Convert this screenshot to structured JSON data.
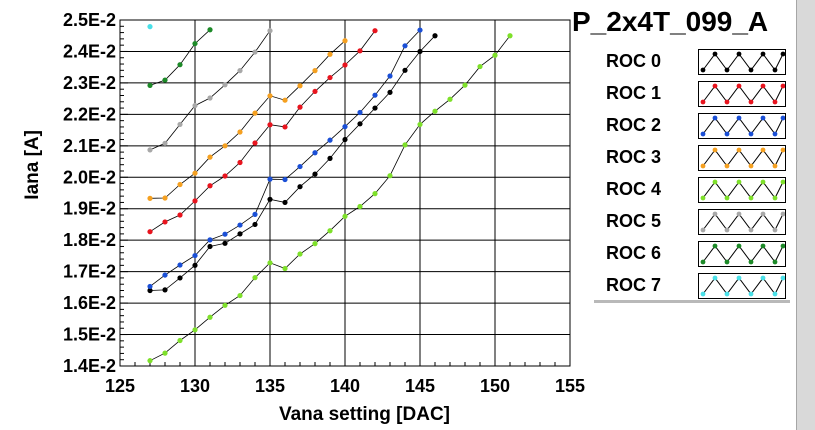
{
  "chart_data": {
    "type": "line",
    "title": "P_2x4T_099_A",
    "xlabel": "Vana setting [DAC]",
    "ylabel": "Iana [A]",
    "xlim": [
      125,
      155
    ],
    "ylim": [
      0.014,
      0.025
    ],
    "x_ticks": [
      "125",
      "130",
      "135",
      "140",
      "145",
      "150",
      "155"
    ],
    "y_ticks": [
      "1.4E-2",
      "1.5E-2",
      "1.6E-2",
      "1.7E-2",
      "1.8E-2",
      "1.9E-2",
      "2.0E-2",
      "2.1E-2",
      "2.2E-2",
      "2.3E-2",
      "2.4E-2",
      "2.5E-2"
    ],
    "grid": true,
    "legend_position": "right",
    "series": [
      {
        "name": "ROC 0",
        "color": "#000000",
        "x": [
          127,
          128,
          129,
          130,
          131,
          132,
          133,
          134,
          135,
          136,
          137,
          138,
          139,
          140,
          141,
          142,
          143,
          144,
          145,
          146
        ],
        "y": [
          0.0164,
          0.01642,
          0.0168,
          0.0172,
          0.0178,
          0.0179,
          0.0182,
          0.0185,
          0.0193,
          0.0192,
          0.0197,
          0.0201,
          0.0206,
          0.0212,
          0.0217,
          0.0222,
          0.0227,
          0.0234,
          0.024,
          0.0245
        ]
      },
      {
        "name": "ROC 1",
        "color": "#e8141e",
        "x": [
          127,
          128,
          129,
          130,
          131,
          132,
          133,
          134,
          135,
          136,
          137,
          138,
          139,
          140,
          141,
          142
        ],
        "y": [
          0.01827,
          0.01858,
          0.0188,
          0.01925,
          0.01973,
          0.02004,
          0.02047,
          0.02109,
          0.02167,
          0.0216,
          0.02223,
          0.02273,
          0.02317,
          0.02357,
          0.02402,
          0.02466
        ]
      },
      {
        "name": "ROC 2",
        "color": "#1a4fd6",
        "x": [
          127,
          128,
          129,
          130,
          131,
          132,
          133,
          134,
          135,
          136,
          137,
          138,
          139,
          140,
          141,
          142,
          143,
          144,
          145
        ],
        "y": [
          0.01653,
          0.01689,
          0.01721,
          0.01751,
          0.01801,
          0.01819,
          0.01848,
          0.01882,
          0.01994,
          0.01993,
          0.02034,
          0.02078,
          0.02118,
          0.02161,
          0.02206,
          0.02261,
          0.02322,
          0.02418,
          0.02468
        ]
      },
      {
        "name": "ROC 3",
        "color": "#f5a020",
        "x": [
          127,
          128,
          129,
          130,
          131,
          132,
          133,
          134,
          135,
          136,
          137,
          138,
          139,
          140
        ],
        "y": [
          0.01933,
          0.01934,
          0.01977,
          0.02013,
          0.02064,
          0.021,
          0.02144,
          0.02204,
          0.02259,
          0.02245,
          0.02291,
          0.02339,
          0.02391,
          0.02434
        ]
      },
      {
        "name": "ROC 4",
        "color": "#7ee02a",
        "x": [
          127,
          128,
          129,
          130,
          131,
          132,
          133,
          134,
          135,
          136,
          137,
          138,
          139,
          140,
          141,
          142,
          143,
          144,
          145,
          146,
          147,
          148,
          149,
          150,
          151
        ],
        "y": [
          0.01417,
          0.01441,
          0.01481,
          0.01515,
          0.01555,
          0.01593,
          0.01624,
          0.01681,
          0.01728,
          0.0171,
          0.01756,
          0.01789,
          0.0183,
          0.01876,
          0.01907,
          0.01948,
          0.02005,
          0.02103,
          0.02168,
          0.0221,
          0.02248,
          0.02293,
          0.02352,
          0.02388,
          0.0245
        ]
      },
      {
        "name": "ROC 5",
        "color": "#a8a8a8",
        "x": [
          127,
          128,
          129,
          130,
          131,
          132,
          133,
          134,
          135
        ],
        "y": [
          0.02087,
          0.02108,
          0.02168,
          0.02228,
          0.02252,
          0.02294,
          0.02339,
          0.02398,
          0.02466
        ]
      },
      {
        "name": "ROC 6",
        "color": "#1d8a28",
        "x": [
          127,
          128,
          129,
          130,
          131
        ],
        "y": [
          0.02292,
          0.02309,
          0.02358,
          0.02425,
          0.02469
        ]
      },
      {
        "name": "ROC 7",
        "color": "#4ae0e8",
        "x": [
          127
        ],
        "y": [
          0.02479
        ]
      }
    ]
  }
}
